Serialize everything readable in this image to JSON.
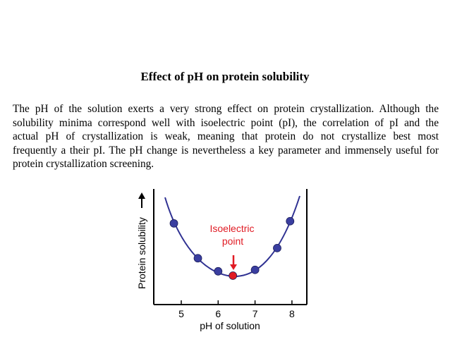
{
  "page": {
    "title": "Effect of pH on protein solubility",
    "paragraph_lines": [
      "The pH of the solution exerts a very strong effect on protein crystallization. Although the",
      "solubility minima correspond well with isoelectric point (pI), the correlation of pI and the",
      "actual pH of crystallization is weak, meaning that protein do not crystallize best most",
      "frequently a their pI. The pH change is nevertheless a key parameter and immensely useful for",
      "protein crystallization screening."
    ]
  },
  "chart_data": {
    "type": "scatter",
    "xlabel": "pH of solution",
    "ylabel": "Protein solubility",
    "x_ticks": [
      "5",
      "6",
      "7",
      "8"
    ],
    "annotation": [
      "Isoelectric",
      "point"
    ],
    "colors": {
      "curve": "#2f3192",
      "points": "#3a3ea0",
      "highlight": "#e01b24",
      "annotation": "#e01b24"
    },
    "points": [
      {
        "x": 4.8,
        "y": 0.72
      },
      {
        "x": 5.45,
        "y": 0.24
      },
      {
        "x": 6.0,
        "y": 0.06
      },
      {
        "x": 6.4,
        "y": 0.0,
        "highlight": true
      },
      {
        "x": 7.0,
        "y": 0.08
      },
      {
        "x": 7.6,
        "y": 0.38
      },
      {
        "x": 7.95,
        "y": 0.75
      }
    ]
  }
}
